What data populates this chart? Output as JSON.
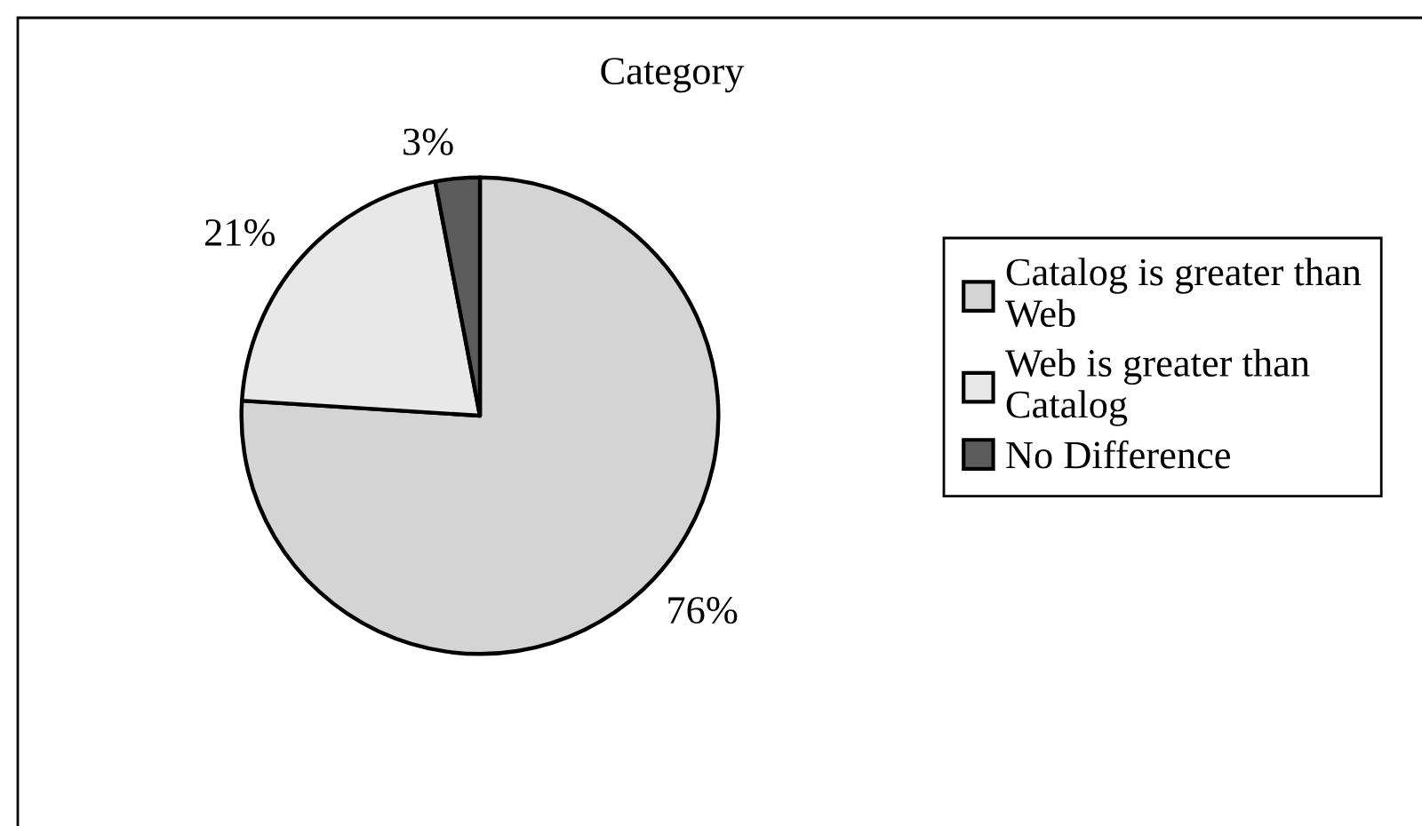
{
  "chart_data": {
    "type": "pie",
    "title": "Category",
    "categories": [
      "Catalog is greater than Web",
      "Web is greater than Catalog",
      "No Difference"
    ],
    "values": [
      76,
      21,
      3
    ],
    "colors": [
      "#d4d4d4",
      "#e8e8e8",
      "#5c5c5c"
    ],
    "value_labels": [
      "76%",
      "21%",
      "3%"
    ],
    "legend": "right"
  }
}
